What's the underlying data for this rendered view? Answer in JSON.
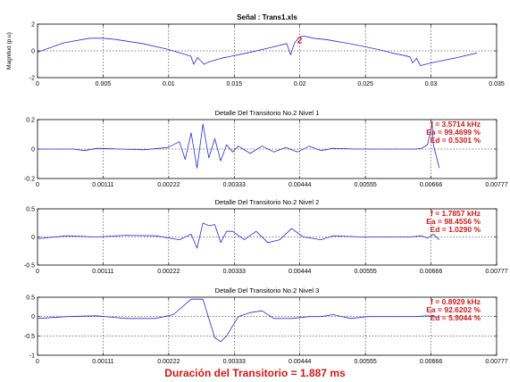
{
  "colors": {
    "signal": "#2a2ad0",
    "annotation": "#cc1a1a",
    "axis": "#000000",
    "grid": "#000000"
  },
  "footer": {
    "duration_text": "Duración del Transitorio = 1.887 ms"
  },
  "chart_data": [
    {
      "type": "line",
      "title": "Señal : Trans1.xls",
      "xlabel": "",
      "ylabel": "Magnitud (p.u)",
      "xlim": [
        0,
        0.035
      ],
      "ylim": [
        -2,
        2
      ],
      "xticks": [
        "0",
        "0.005",
        "0.01",
        "0.015",
        "0.02",
        "0.025",
        "0.03",
        "0.035"
      ],
      "yticks": [
        "-2",
        "0",
        "2"
      ],
      "grid": "dashed",
      "annotations": [
        {
          "text": "2",
          "x": 0.0198,
          "y": 0.85
        }
      ],
      "series": [
        {
          "x": [
            0.0,
            0.002,
            0.004,
            0.005,
            0.006,
            0.008,
            0.01,
            0.0112,
            0.0117,
            0.0119,
            0.0122,
            0.0127,
            0.013,
            0.014,
            0.016,
            0.018,
            0.019,
            0.0193,
            0.0196,
            0.02,
            0.0203,
            0.0206,
            0.021,
            0.022,
            0.024,
            0.026,
            0.027,
            0.028,
            0.0284,
            0.0286,
            0.0289,
            0.0292,
            0.03,
            0.032,
            0.0335
          ],
          "y": [
            -0.1,
            0.6,
            0.95,
            0.95,
            0.85,
            0.55,
            0.1,
            -0.25,
            -0.4,
            -1.0,
            -0.5,
            -1.0,
            -0.85,
            -0.55,
            -0.15,
            0.3,
            0.55,
            -0.3,
            0.6,
            1.05,
            1.1,
            1.05,
            0.95,
            0.85,
            0.5,
            0.1,
            -0.15,
            -0.35,
            -0.45,
            -0.9,
            -0.55,
            -1.1,
            -0.9,
            -0.5,
            -0.15
          ]
        }
      ]
    },
    {
      "type": "line",
      "title": "Detalle Del Transitorio No.2  Nivel 1",
      "xlabel": "",
      "ylabel": "",
      "xlim": [
        0,
        0.00777
      ],
      "ylim": [
        -0.2,
        0.2
      ],
      "xticks": [
        "0",
        "0.00111",
        "0.00222",
        "0.00333",
        "0.00444",
        "0.00555",
        "0.00666",
        "0.00777"
      ],
      "yticks": [
        "-0.2",
        "0",
        "0.2"
      ],
      "grid": "dashed",
      "annotations": [
        {
          "text": "f = 3.5714 kHz"
        },
        {
          "text": "Ea = 99.4699 %"
        },
        {
          "text": "Ed = 0.5301 %"
        }
      ],
      "series": [
        {
          "x": [
            0,
            0.0006,
            0.0008,
            0.001,
            0.0014,
            0.0018,
            0.0022,
            0.0024,
            0.0025,
            0.0026,
            0.0027,
            0.0028,
            0.0029,
            0.003,
            0.0031,
            0.0032,
            0.0033,
            0.0034,
            0.0036,
            0.0038,
            0.004,
            0.0042,
            0.0044,
            0.0046,
            0.0048,
            0.005,
            0.0054,
            0.0058,
            0.006,
            0.0062,
            0.0064,
            0.0065,
            0.0066,
            0.00668,
            0.0067,
            0.0068
          ],
          "y": [
            0,
            0,
            -0.01,
            0.005,
            0,
            -0.005,
            0.01,
            0.05,
            -0.07,
            0.11,
            -0.13,
            0.17,
            -0.06,
            0.07,
            -0.08,
            0.03,
            -0.02,
            0.02,
            -0.03,
            0.02,
            -0.02,
            0.01,
            -0.02,
            0.02,
            -0.01,
            0.005,
            0,
            0,
            0,
            0,
            0,
            0.005,
            0.03,
            0.17,
            0.03,
            -0.13
          ]
        }
      ]
    },
    {
      "type": "line",
      "title": "Detalle Del Transitorio No.2  Nivel 2",
      "xlabel": "",
      "ylabel": "",
      "xlim": [
        0,
        0.00777
      ],
      "ylim": [
        -0.5,
        0.5
      ],
      "xticks": [
        "0",
        "0.00111",
        "0.00222",
        "0.00333",
        "0.00444",
        "0.00555",
        "0.00666",
        "0.00777"
      ],
      "yticks": [
        "-0.5",
        "0",
        "0.5"
      ],
      "grid": "dashed",
      "annotations": [
        {
          "text": "f = 1.7857 kHz"
        },
        {
          "text": "Ea = 98.4556 %"
        },
        {
          "text": "Ed = 1.0290 %"
        }
      ],
      "series": [
        {
          "x": [
            0,
            0.0005,
            0.001,
            0.0015,
            0.002,
            0.0024,
            0.0026,
            0.0027,
            0.0028,
            0.0029,
            0.003,
            0.0031,
            0.0032,
            0.0033,
            0.0035,
            0.0037,
            0.0039,
            0.0041,
            0.0043,
            0.0045,
            0.0048,
            0.005,
            0.0055,
            0.006,
            0.0063,
            0.0065,
            0.0066,
            0.0067,
            0.0068
          ],
          "y": [
            -0.03,
            0.02,
            0.0,
            0.03,
            0.02,
            -0.05,
            0.05,
            -0.2,
            0.25,
            0.2,
            0.22,
            -0.1,
            0.1,
            0.1,
            -0.05,
            0.1,
            -0.1,
            -0.05,
            0.15,
            0.0,
            -0.05,
            0.02,
            0.0,
            0.0,
            0.0,
            0.02,
            -0.02,
            0.05,
            -0.05
          ]
        }
      ]
    },
    {
      "type": "line",
      "title": "Detalle Del Transitorio No.2  Nivel 3",
      "xlabel": "",
      "ylabel": "",
      "xlim": [
        0,
        0.00777
      ],
      "ylim": [
        -1,
        0.5
      ],
      "xticks": [
        "0",
        "0.00111",
        "0.00222",
        "0.00333",
        "0.00444",
        "0.00555",
        "0.00666",
        "0.00777"
      ],
      "yticks": [
        "-1",
        "-0.5",
        "0",
        "0.5"
      ],
      "grid": "dashed",
      "annotations": [
        {
          "text": "f = 0.8929 kHz"
        },
        {
          "text": "Ea = 92.6202 %"
        },
        {
          "text": "Ed = 5.9044 %"
        }
      ],
      "series": [
        {
          "x": [
            0,
            0.0005,
            0.001,
            0.0015,
            0.002,
            0.0023,
            0.0026,
            0.0028,
            0.003,
            0.0031,
            0.0032,
            0.0034,
            0.0036,
            0.0038,
            0.004,
            0.0043,
            0.0046,
            0.0048,
            0.005,
            0.0053,
            0.0056,
            0.006,
            0.0064,
            0.0066,
            0.0068
          ],
          "y": [
            -0.05,
            0.0,
            0.02,
            -0.05,
            -0.05,
            0.05,
            0.45,
            0.45,
            -0.55,
            -0.65,
            -0.5,
            0.0,
            0.1,
            0.15,
            -0.05,
            -0.05,
            0.0,
            0.0,
            0.05,
            -0.05,
            0.0,
            0.0,
            0.0,
            0.02,
            -0.02
          ]
        }
      ]
    }
  ]
}
